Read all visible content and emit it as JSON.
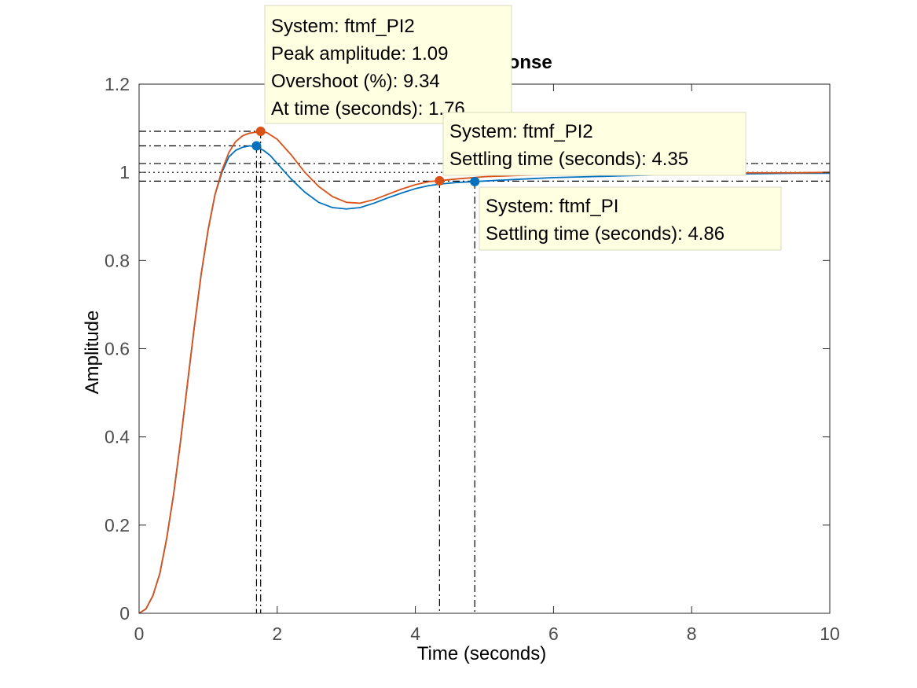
{
  "chart_data": {
    "type": "line",
    "title": "Step Response",
    "xlabel": "Time (seconds)",
    "ylabel": "Amplitude",
    "xlim": [
      0,
      10
    ],
    "ylim": [
      0,
      1.2
    ],
    "xticks": [
      0,
      2,
      4,
      6,
      8,
      10
    ],
    "yticks": [
      0,
      0.2,
      0.4,
      0.6,
      0.8,
      1,
      1.2
    ],
    "xtick_labels": [
      "0",
      "2",
      "4",
      "6",
      "8",
      "10"
    ],
    "ytick_labels": [
      "0",
      "0.2",
      "0.4",
      "0.6",
      "0.8",
      "1",
      "1.2"
    ],
    "series": [
      {
        "name": "ftmf_PI",
        "color": "#0072bd",
        "x": [
          0,
          0.1,
          0.2,
          0.3,
          0.4,
          0.5,
          0.6,
          0.7,
          0.8,
          0.9,
          1.0,
          1.1,
          1.2,
          1.3,
          1.4,
          1.5,
          1.6,
          1.7,
          1.8,
          1.9,
          2.0,
          2.2,
          2.4,
          2.6,
          2.8,
          3.0,
          3.2,
          3.4,
          3.6,
          3.8,
          4.0,
          4.2,
          4.4,
          4.6,
          4.86,
          5.2,
          5.6,
          6.0,
          6.5,
          7.0,
          7.5,
          8.0,
          8.5,
          9.0,
          9.5,
          10.0
        ],
        "y": [
          0,
          0.01,
          0.04,
          0.09,
          0.17,
          0.27,
          0.39,
          0.52,
          0.65,
          0.77,
          0.87,
          0.95,
          1.0,
          1.035,
          1.05,
          1.057,
          1.06,
          1.058,
          1.05,
          1.038,
          1.02,
          0.985,
          0.955,
          0.932,
          0.92,
          0.917,
          0.92,
          0.93,
          0.942,
          0.953,
          0.963,
          0.97,
          0.974,
          0.977,
          0.979,
          0.982,
          0.985,
          0.988,
          0.99,
          0.992,
          0.994,
          0.995,
          0.996,
          0.997,
          0.998,
          0.998
        ]
      },
      {
        "name": "ftmf_PI2",
        "color": "#d95319",
        "x": [
          0,
          0.1,
          0.2,
          0.3,
          0.4,
          0.5,
          0.6,
          0.7,
          0.8,
          0.9,
          1.0,
          1.1,
          1.2,
          1.3,
          1.4,
          1.5,
          1.6,
          1.7,
          1.76,
          1.85,
          2.0,
          2.2,
          2.4,
          2.6,
          2.8,
          3.0,
          3.2,
          3.4,
          3.6,
          3.8,
          4.0,
          4.2,
          4.35,
          4.6,
          5.0,
          5.5,
          6.0,
          6.5,
          7.0,
          7.5,
          8.0,
          8.5,
          9.0,
          9.5,
          10.0
        ],
        "y": [
          0,
          0.01,
          0.04,
          0.09,
          0.17,
          0.27,
          0.39,
          0.52,
          0.65,
          0.77,
          0.87,
          0.95,
          1.005,
          1.045,
          1.07,
          1.083,
          1.089,
          1.091,
          1.093,
          1.09,
          1.075,
          1.04,
          1.0,
          0.968,
          0.945,
          0.932,
          0.93,
          0.938,
          0.95,
          0.962,
          0.972,
          0.979,
          0.981,
          0.985,
          0.99,
          0.993,
          0.995,
          0.996,
          0.997,
          0.998,
          0.998,
          0.999,
          0.999,
          0.999,
          1.0
        ]
      }
    ],
    "reference_lines": {
      "steady_state": 1.0,
      "settling_band_upper": 1.02,
      "settling_band_lower": 0.98,
      "peak_level_ftmf_PI": 1.06,
      "peak_level_ftmf_PI2": 1.093,
      "peak_time_ftmf_PI": 1.7,
      "peak_time_ftmf_PI2": 1.76,
      "settling_time_ftmf_PI": 4.86,
      "settling_time_ftmf_PI2": 4.35
    },
    "markers": [
      {
        "series": "ftmf_PI",
        "x": 1.7,
        "y": 1.06,
        "color": "#0072bd"
      },
      {
        "series": "ftmf_PI2",
        "x": 1.76,
        "y": 1.093,
        "color": "#d95319"
      },
      {
        "series": "ftmf_PI2",
        "x": 4.35,
        "y": 0.981,
        "color": "#d95319"
      },
      {
        "series": "ftmf_PI",
        "x": 4.86,
        "y": 0.979,
        "color": "#0072bd"
      }
    ],
    "annotations": [
      {
        "name": "peak-tooltip",
        "lines": [
          "System: ftmf_PI2",
          "Peak amplitude: 1.09",
          "Overshoot (%): 9.34",
          "At time (seconds): 1.76"
        ]
      },
      {
        "name": "settling-pi2-tooltip",
        "lines": [
          "System: ftmf_PI2",
          "Settling time (seconds): 4.35"
        ]
      },
      {
        "name": "settling-pi-tooltip",
        "lines": [
          "System: ftmf_PI",
          "Settling time (seconds): 4.86"
        ]
      }
    ]
  }
}
